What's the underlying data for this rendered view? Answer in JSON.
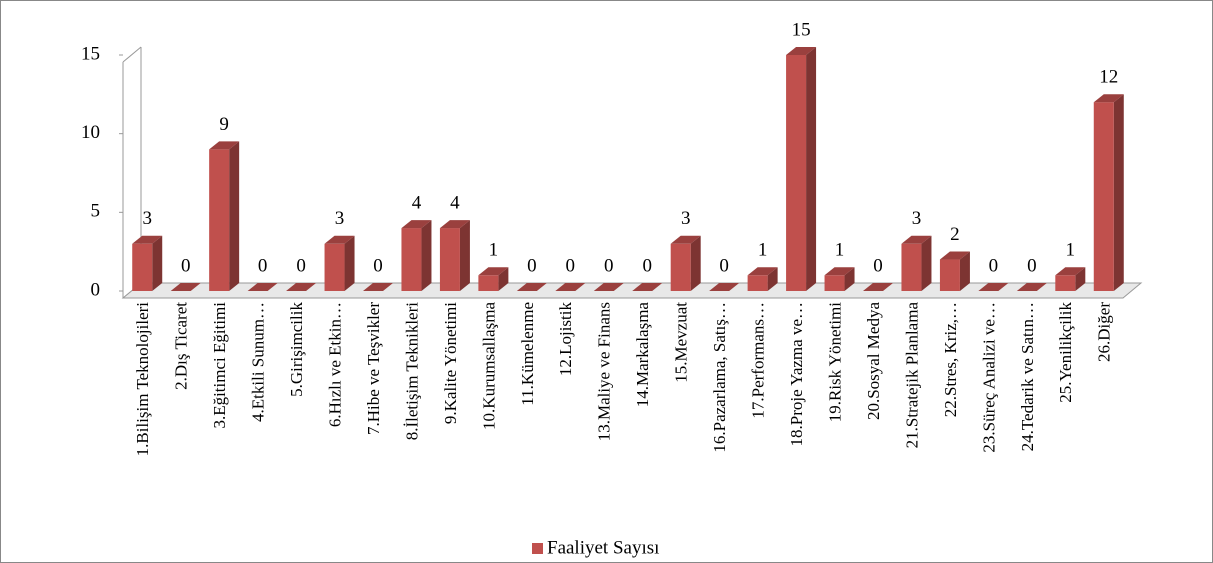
{
  "chart_data": {
    "type": "bar3d",
    "categories": [
      "1.Bilişim Teknolojileri",
      "2.Dış Ticaret",
      "3.Eğitimci Eğitimi",
      "4.Etkili Sunum…",
      "5.Girişimcilik",
      "6.Hızlı ve Etkin…",
      "7.Hibe ve Teşvikler",
      "8.İletişim Teknikleri",
      "9.Kalite Yönetimi",
      "10.Kurumsallaşma",
      "11.Kümelenme",
      "12.Lojistik",
      "13.Maliye ve Finans",
      "14.Markalaşma",
      "15.Mevzuat",
      "16.Pazarlama, Satış…",
      "17.Performans…",
      "18.Proje Yazma ve…",
      "19.Risk Yönetimi",
      "20.Sosyal Medya",
      "21.Stratejik Planlama",
      "22.Stres, Kriz,…",
      "23.Süreç Analizi ve…",
      "24.Tedarik ve Satın…",
      "25.Yenilikçilik",
      "26.Diğer"
    ],
    "series": [
      {
        "name": "Faaliyet Sayısı",
        "color": "#c0504d",
        "values": [
          3,
          0,
          9,
          0,
          0,
          3,
          0,
          4,
          4,
          1,
          0,
          0,
          0,
          0,
          3,
          0,
          1,
          15,
          1,
          0,
          3,
          2,
          0,
          0,
          1,
          12
        ]
      }
    ],
    "ylim": [
      0,
      15
    ],
    "yticks": [
      0,
      5,
      10,
      15
    ],
    "legend": "bottom",
    "data_labels": true
  }
}
